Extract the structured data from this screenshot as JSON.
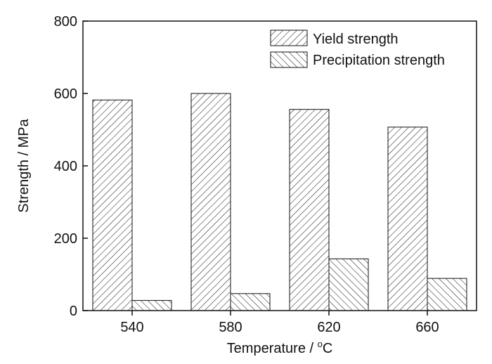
{
  "chart_data": {
    "type": "bar",
    "categories": [
      "540",
      "580",
      "620",
      "660"
    ],
    "series": [
      {
        "name": "Yield strength",
        "values": [
          582,
          600,
          556,
          507
        ],
        "pattern": "forward-hatch"
      },
      {
        "name": "Precipitation strength",
        "values": [
          28,
          47,
          143,
          89
        ],
        "pattern": "back-hatch"
      }
    ],
    "xlabel": "Temperature / °C",
    "xlabel_main": "Temperature / ",
    "xlabel_sup": "o",
    "xlabel_unit": "C",
    "ylabel": "Strength / MPa",
    "ylim": [
      0,
      800
    ],
    "yticks": [
      0,
      200,
      400,
      600,
      800
    ],
    "grid": false,
    "legend_position": "top-right",
    "colors": {
      "stroke": "#111111",
      "fill": "#ffffff"
    }
  }
}
